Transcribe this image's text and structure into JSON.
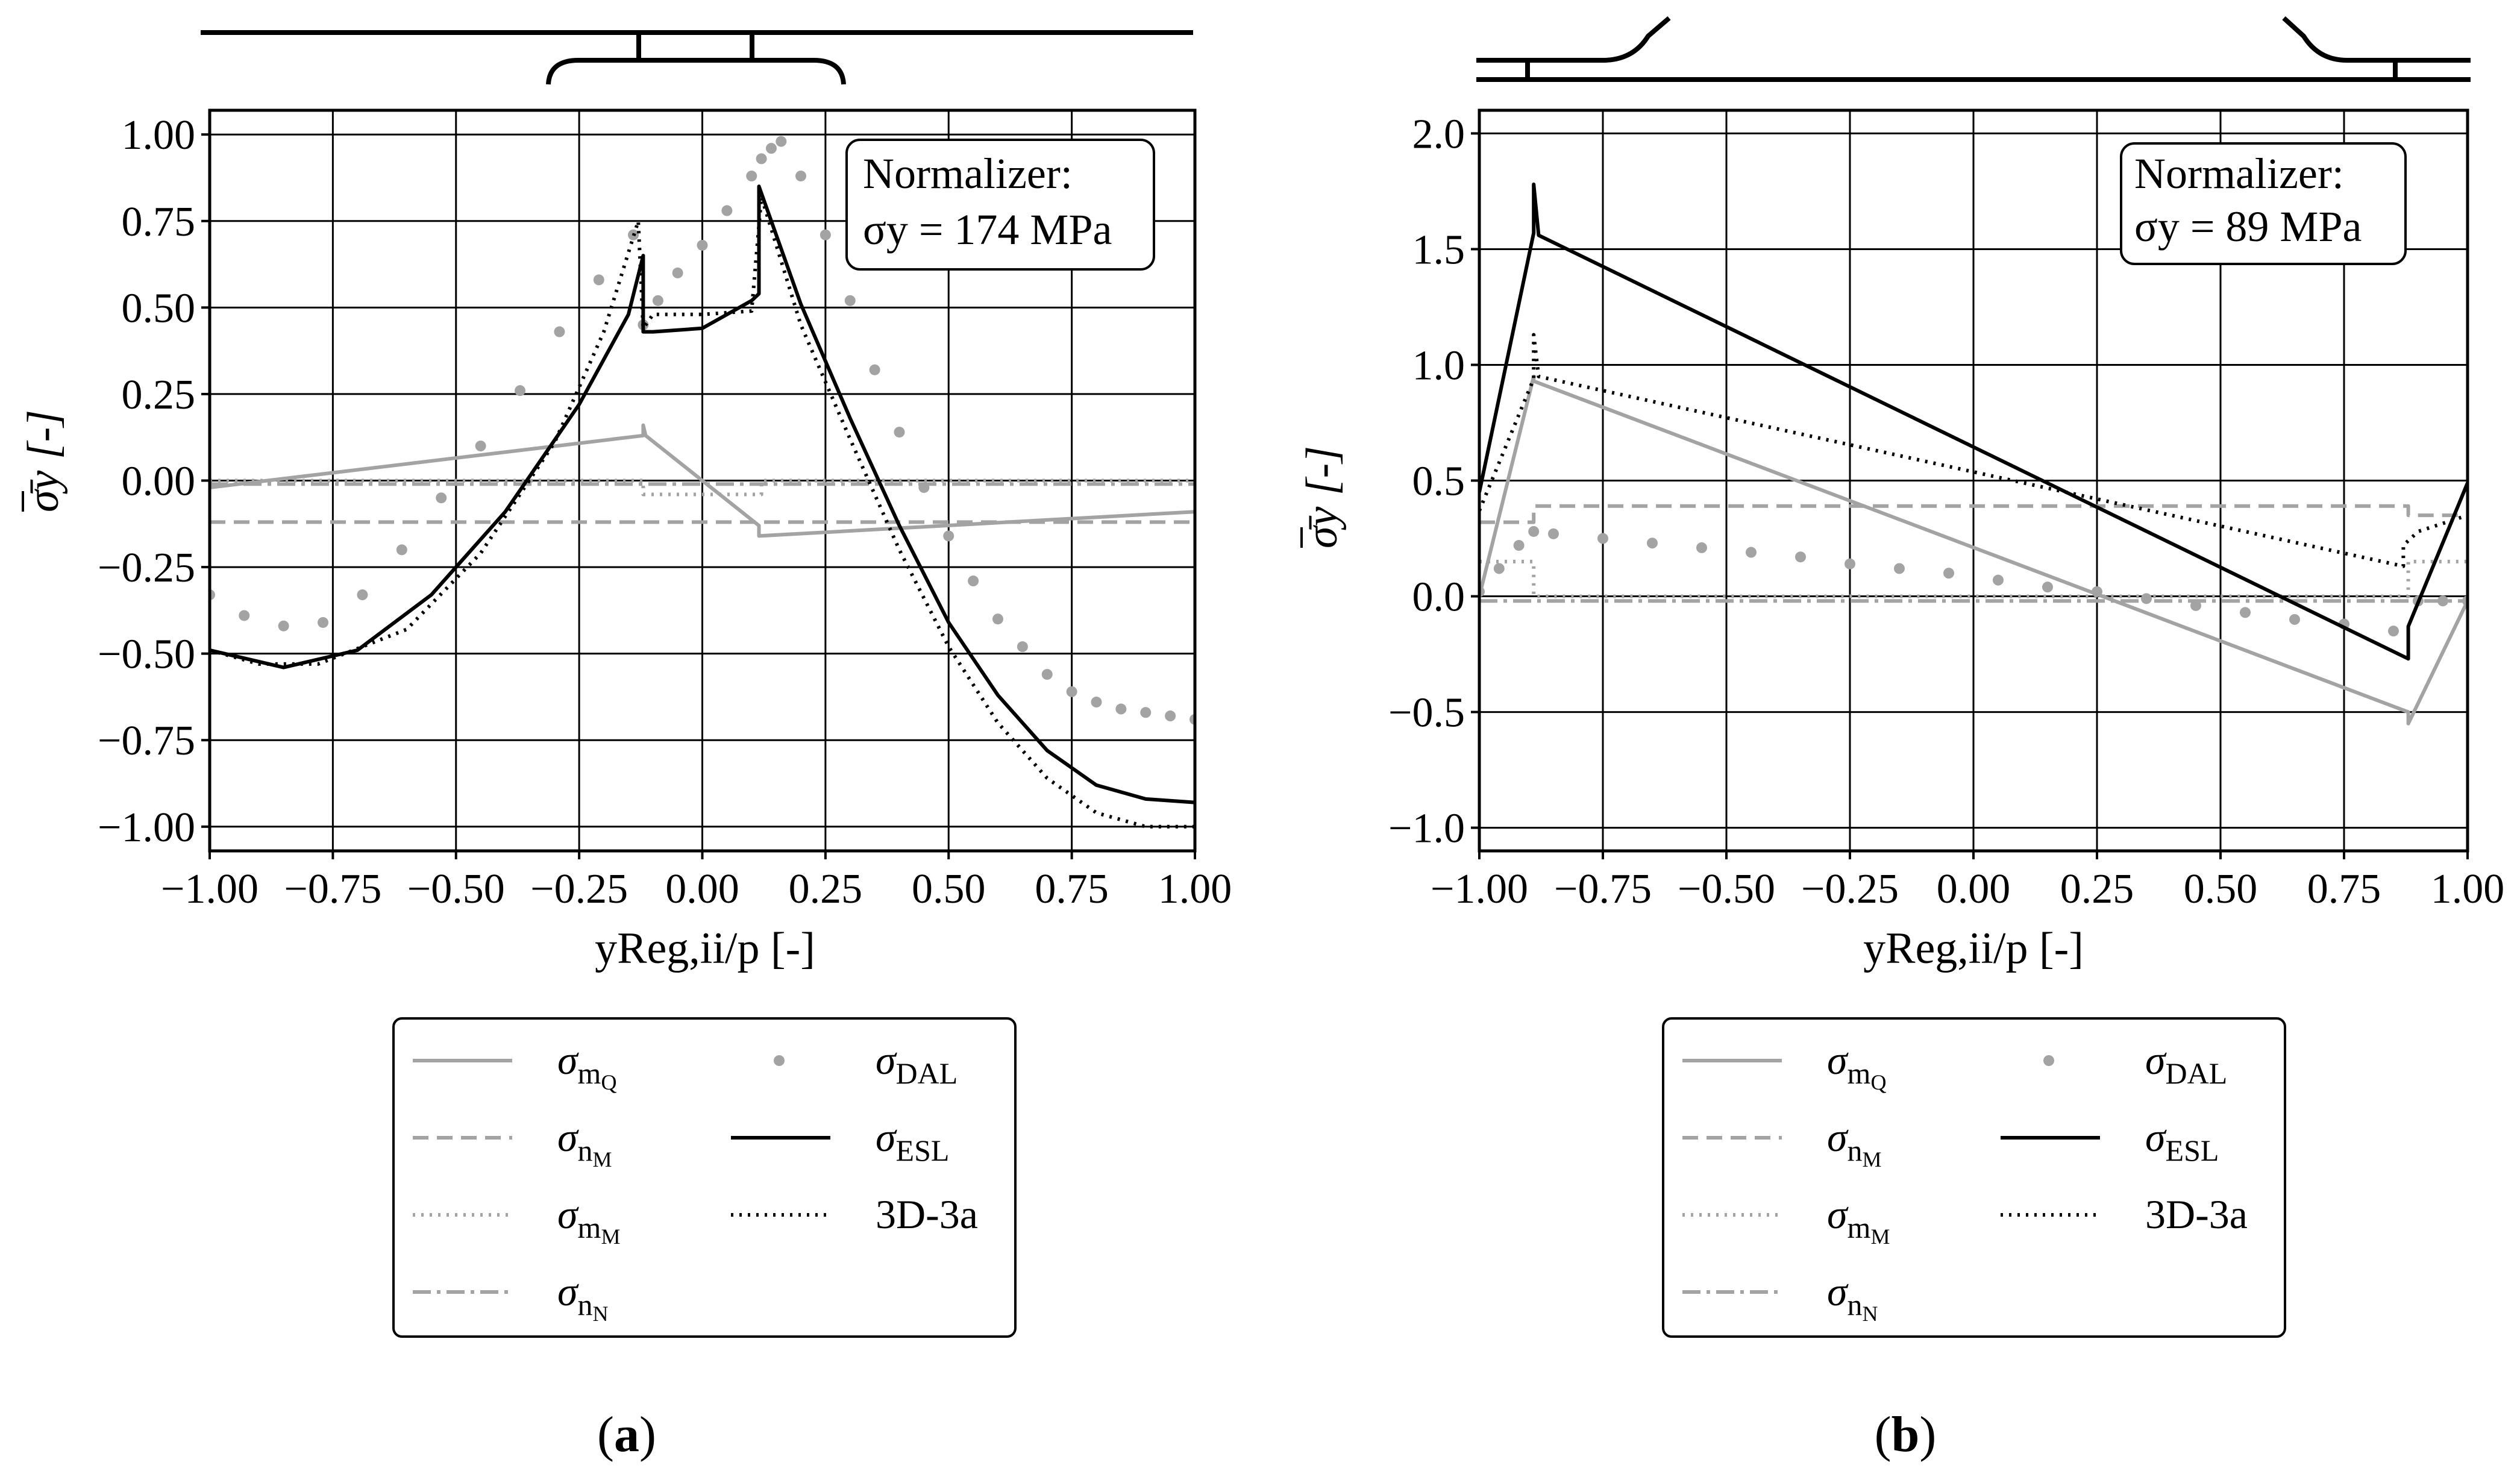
{
  "chart_data": [
    {
      "panel": "(a)",
      "type": "line",
      "ylabel_text": "σ̄y [-]",
      "xlabel_text": "yReg,ii/p [-]",
      "xlim": [
        -1.0,
        1.0
      ],
      "ylim": [
        -1.07,
        1.07
      ],
      "xticks": [
        "−1.00",
        "−0.75",
        "−0.50",
        "−0.25",
        "0.00",
        "0.25",
        "0.50",
        "0.75",
        "1.00"
      ],
      "xtick_values": [
        -1.0,
        -0.75,
        -0.5,
        -0.25,
        0.0,
        0.25,
        0.5,
        0.75,
        1.0
      ],
      "yticks": [
        "1.00",
        "0.75",
        "0.50",
        "0.25",
        "0.00",
        "−0.25",
        "−0.50",
        "−0.75",
        "−1.00"
      ],
      "ytick_values": [
        1.0,
        0.75,
        0.5,
        0.25,
        0.0,
        -0.25,
        -0.5,
        -0.75,
        -1.0
      ],
      "grid": true,
      "annotation": {
        "line1": "Normalizer:",
        "line2": "σy = 174 MPa"
      },
      "series": [
        {
          "name": "σmQ",
          "style": "gray-solid",
          "x": [
            -1.0,
            -0.12,
            -0.12,
            -0.115,
            0.115,
            0.115,
            1.0
          ],
          "y": [
            -0.02,
            0.13,
            0.16,
            0.13,
            -0.13,
            -0.16,
            -0.09
          ]
        },
        {
          "name": "σnM",
          "style": "gray-dashed",
          "x": [
            -1.0,
            1.0
          ],
          "y": [
            -0.12,
            -0.12
          ]
        },
        {
          "name": "σmM",
          "style": "gray-dotted",
          "x": [
            -1.0,
            -0.12,
            -0.12,
            0.12,
            0.12,
            1.0
          ],
          "y": [
            0.0,
            0.0,
            -0.04,
            -0.04,
            0.0,
            0.0
          ]
        },
        {
          "name": "σnN",
          "style": "gray-dashdot",
          "x": [
            -1.0,
            1.0
          ],
          "y": [
            -0.01,
            -0.01
          ]
        },
        {
          "name": "σDAL",
          "style": "gray-dots",
          "x": [
            -1.0,
            -0.93,
            -0.85,
            -0.77,
            -0.69,
            -0.61,
            -0.53,
            -0.45,
            -0.37,
            -0.29,
            -0.21,
            -0.14,
            -0.12,
            -0.09,
            -0.05,
            0.0,
            0.05,
            0.1,
            0.12,
            0.14,
            0.16,
            0.2,
            0.25,
            0.3,
            0.35,
            0.4,
            0.45,
            0.5,
            0.55,
            0.6,
            0.65,
            0.7,
            0.75,
            0.8,
            0.85,
            0.9,
            0.95,
            1.0
          ],
          "y": [
            -0.33,
            -0.39,
            -0.42,
            -0.41,
            -0.33,
            -0.2,
            -0.05,
            0.1,
            0.26,
            0.43,
            0.58,
            0.71,
            0.45,
            0.52,
            0.6,
            0.68,
            0.78,
            0.88,
            0.93,
            0.96,
            0.98,
            0.88,
            0.71,
            0.52,
            0.32,
            0.14,
            -0.02,
            -0.16,
            -0.29,
            -0.4,
            -0.48,
            -0.56,
            -0.61,
            -0.64,
            -0.66,
            -0.67,
            -0.68,
            -0.69
          ]
        },
        {
          "name": "σESL",
          "style": "black-solid",
          "x": [
            -1.0,
            -0.85,
            -0.7,
            -0.55,
            -0.4,
            -0.25,
            -0.15,
            -0.12,
            -0.12,
            -0.1,
            0.0,
            0.1,
            0.115,
            0.115,
            0.2,
            0.3,
            0.4,
            0.5,
            0.6,
            0.7,
            0.8,
            0.9,
            1.0
          ],
          "y": [
            -0.49,
            -0.54,
            -0.49,
            -0.33,
            -0.09,
            0.22,
            0.48,
            0.65,
            0.43,
            0.43,
            0.44,
            0.52,
            0.54,
            0.85,
            0.51,
            0.18,
            -0.13,
            -0.41,
            -0.62,
            -0.78,
            -0.88,
            -0.92,
            -0.93
          ]
        },
        {
          "name": "3D-3a",
          "style": "black-dotted",
          "x": [
            -1.0,
            -0.9,
            -0.78,
            -0.6,
            -0.45,
            -0.3,
            -0.2,
            -0.13,
            -0.12,
            -0.1,
            0.0,
            0.1,
            0.12,
            0.2,
            0.3,
            0.4,
            0.5,
            0.6,
            0.7,
            0.8,
            0.9,
            1.0
          ],
          "y": [
            -0.49,
            -0.53,
            -0.53,
            -0.43,
            -0.21,
            0.11,
            0.43,
            0.75,
            0.44,
            0.48,
            0.48,
            0.49,
            0.82,
            0.45,
            0.12,
            -0.2,
            -0.48,
            -0.7,
            -0.86,
            -0.96,
            -1.0,
            -1.0
          ]
        }
      ],
      "legend": {
        "left": [
          "σmQ",
          "σnM",
          "σmM",
          "σnN"
        ],
        "right": [
          "σDAL",
          "σESL",
          "3D-3a"
        ]
      }
    },
    {
      "panel": "(b)",
      "type": "line",
      "ylabel_text": "σ̄y [-]",
      "xlabel_text": "yReg,ii/p [-]",
      "xlim": [
        -1.0,
        1.0
      ],
      "ylim": [
        -1.1,
        2.1
      ],
      "xticks": [
        "−1.00",
        "−0.75",
        "−0.50",
        "−0.25",
        "0.00",
        "0.25",
        "0.50",
        "0.75",
        "1.00"
      ],
      "xtick_values": [
        -1.0,
        -0.75,
        -0.5,
        -0.25,
        0.0,
        0.25,
        0.5,
        0.75,
        1.0
      ],
      "yticks": [
        "2.0",
        "1.5",
        "1.0",
        "0.5",
        "0.0",
        "−0.5",
        "−1.0"
      ],
      "ytick_values": [
        2.0,
        1.5,
        1.0,
        0.5,
        0.0,
        -0.5,
        -1.0
      ],
      "grid": true,
      "annotation": {
        "line1": "Normalizer:",
        "line2": "σy = 89 MPa"
      },
      "series": [
        {
          "name": "σmQ",
          "style": "gray-solid",
          "x": [
            -1.0,
            -0.89,
            -0.89,
            0.88,
            0.88,
            1.0
          ],
          "y": [
            0.0,
            0.95,
            0.93,
            -0.5,
            -0.55,
            -0.02
          ]
        },
        {
          "name": "σnM",
          "style": "gray-dashed",
          "x": [
            -1.0,
            -0.89,
            -0.89,
            0.88,
            0.88,
            1.0
          ],
          "y": [
            0.32,
            0.32,
            0.39,
            0.39,
            0.35,
            0.35
          ]
        },
        {
          "name": "σmM",
          "style": "gray-dotted",
          "x": [
            -1.0,
            -0.89,
            -0.89,
            0.88,
            0.88,
            1.0
          ],
          "y": [
            0.15,
            0.15,
            0.0,
            0.0,
            0.15,
            0.15
          ]
        },
        {
          "name": "σnN",
          "style": "gray-dashdot",
          "x": [
            -1.0,
            1.0
          ],
          "y": [
            -0.02,
            -0.02
          ]
        },
        {
          "name": "σDAL",
          "style": "gray-dots",
          "x": [
            -1.0,
            -0.96,
            -0.92,
            -0.89,
            -0.85,
            -0.75,
            -0.65,
            -0.55,
            -0.45,
            -0.35,
            -0.25,
            -0.15,
            -0.05,
            0.05,
            0.15,
            0.25,
            0.35,
            0.45,
            0.55,
            0.65,
            0.75,
            0.85,
            0.9,
            0.95,
            1.0
          ],
          "y": [
            0.02,
            0.12,
            0.22,
            0.28,
            0.27,
            0.25,
            0.23,
            0.21,
            0.19,
            0.17,
            0.14,
            0.12,
            0.1,
            0.07,
            0.04,
            0.02,
            -0.01,
            -0.04,
            -0.07,
            -0.1,
            -0.12,
            -0.15,
            -0.02,
            -0.02,
            -0.02
          ]
        },
        {
          "name": "σESL",
          "style": "black-solid",
          "x": [
            -1.0,
            -0.89,
            -0.89,
            -0.88,
            0.88,
            0.88,
            1.0
          ],
          "y": [
            0.45,
            1.57,
            1.78,
            1.56,
            -0.27,
            -0.13,
            0.49
          ]
        },
        {
          "name": "3D-3a",
          "style": "black-dotted",
          "x": [
            -1.0,
            -0.89,
            -0.89,
            -0.88,
            0.87,
            0.87,
            0.9,
            1.0
          ],
          "y": [
            0.37,
            0.94,
            1.13,
            0.95,
            0.13,
            0.22,
            0.28,
            0.35
          ]
        }
      ],
      "legend": {
        "left": [
          "σmQ",
          "σnM",
          "σmM",
          "σnN"
        ],
        "right": [
          "σDAL",
          "σESL",
          "3D-3a"
        ]
      }
    }
  ],
  "legend_symbols": {
    "sigma": "σ",
    "mQ": "mQ",
    "nM": "nM",
    "mM": "mM",
    "nN": "nN",
    "DAL": "DAL",
    "ESL": "ESL",
    "label_3d": "3D-3a",
    "y": "y",
    "ylabel_bracket": "[-]"
  },
  "xlabel_parts": {
    "y": "y",
    "sub": "Reg, ii",
    "rest": "/p [-]"
  },
  "subfig_labels": {
    "a": "a",
    "b": "b"
  },
  "colors": {
    "gray": "#a3a3a3",
    "black": "#000000",
    "grid": "#000000"
  }
}
